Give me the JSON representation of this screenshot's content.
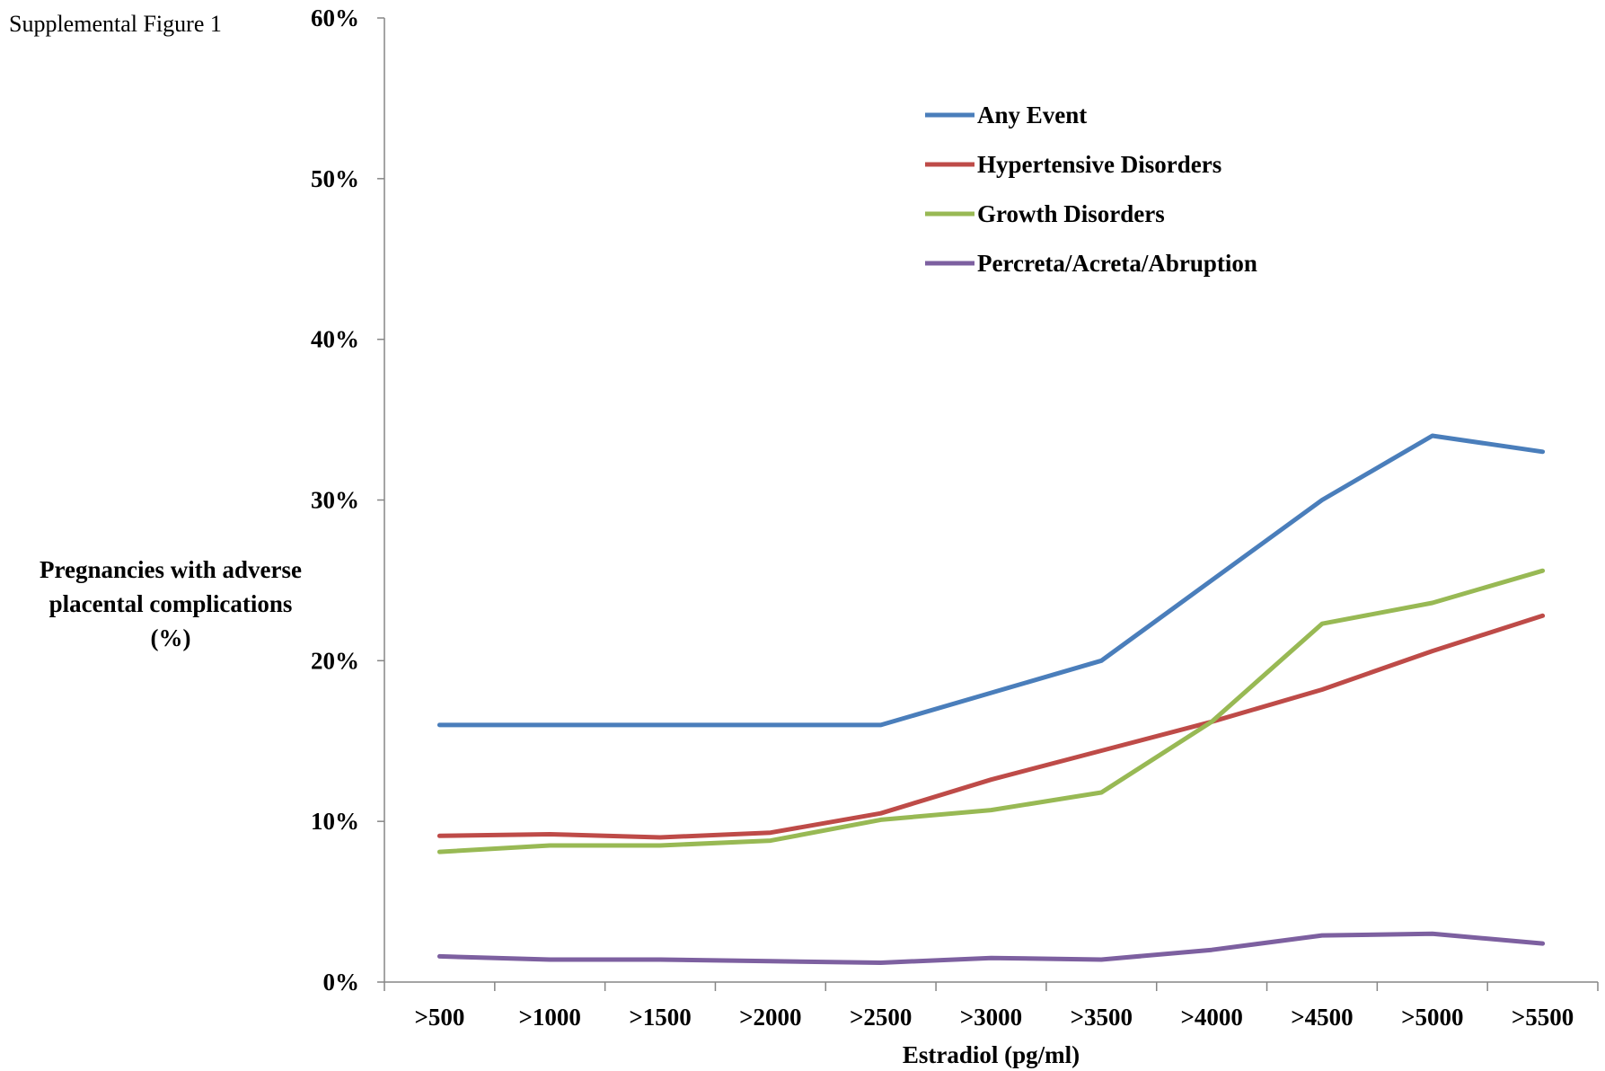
{
  "figure_label": "Supplemental Figure 1",
  "chart_data": {
    "type": "line",
    "title": "",
    "xlabel": "Estradiol (pg/ml)",
    "ylabel_lines": [
      "Pregnancies with adverse",
      "placental complications",
      "(%)"
    ],
    "categories": [
      ">500",
      ">1000",
      ">1500",
      ">2000",
      ">2500",
      ">3000",
      ">3500",
      ">4000",
      ">4500",
      ">5000",
      ">5500"
    ],
    "ylim": [
      0,
      60
    ],
    "yticks": [
      0,
      10,
      20,
      30,
      40,
      50,
      60
    ],
    "ytick_labels": [
      "0%",
      "10%",
      "20%",
      "30%",
      "40%",
      "50%",
      "60%"
    ],
    "grid": false,
    "legend_position": "top-right inside plot",
    "series": [
      {
        "name": "Any Event",
        "color": "#4a7ebb",
        "values": [
          16,
          16,
          16,
          16,
          16,
          18,
          20,
          25,
          30,
          34,
          33
        ]
      },
      {
        "name": "Hypertensive Disorders",
        "color": "#be4b48",
        "values": [
          9.1,
          9.2,
          9.0,
          9.3,
          10.5,
          12.6,
          14.4,
          16.2,
          18.2,
          20.6,
          22.8
        ]
      },
      {
        "name": "Growth Disorders",
        "color": "#98b954",
        "values": [
          8.1,
          8.5,
          8.5,
          8.8,
          10.1,
          10.7,
          11.8,
          16.2,
          22.3,
          23.6,
          25.6
        ]
      },
      {
        "name": "Percreta/Acreta/Abruption",
        "color": "#7d60a0",
        "values": [
          1.6,
          1.4,
          1.4,
          1.3,
          1.2,
          1.5,
          1.4,
          2.0,
          2.9,
          3.0,
          2.4
        ]
      }
    ]
  }
}
